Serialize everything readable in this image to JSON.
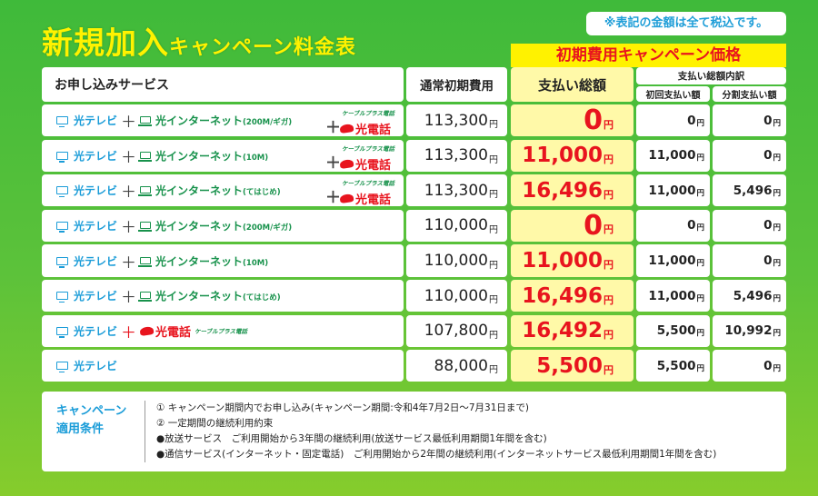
{
  "title": {
    "main": "新規加入",
    "sub": "キャンペーン料金表"
  },
  "tax_note": "※表記の金額は全て税込です。",
  "campaign_banner": "初期費用キャンペーン価格",
  "headers": {
    "service": "お申し込みサービス",
    "normal_fee": "通常初期費用",
    "total": "支払い総額",
    "breakdown": "支払い総額内訳",
    "initial": "初回支払い額",
    "split": "分割支払い額"
  },
  "labels": {
    "tv": "光テレビ",
    "internet": "光インターネット",
    "phone": "光電話",
    "cable_plus": "ケーブルプラス電話",
    "plus": "＋",
    "yen": "円"
  },
  "rows": [
    {
      "plan": "(200M/ギガ)",
      "has_internet": true,
      "has_phone": true,
      "normal": "113,300",
      "total": "0",
      "initial": "0",
      "split": "0"
    },
    {
      "plan": "(10M)",
      "has_internet": true,
      "has_phone": true,
      "normal": "113,300",
      "total": "11,000",
      "initial": "11,000",
      "split": "0"
    },
    {
      "plan": "(てはじめ)",
      "has_internet": true,
      "has_phone": true,
      "normal": "113,300",
      "total": "16,496",
      "initial": "11,000",
      "split": "5,496"
    },
    {
      "plan": "(200M/ギガ)",
      "has_internet": true,
      "has_phone": false,
      "normal": "110,000",
      "total": "0",
      "initial": "0",
      "split": "0"
    },
    {
      "plan": "(10M)",
      "has_internet": true,
      "has_phone": false,
      "normal": "110,000",
      "total": "11,000",
      "initial": "11,000",
      "split": "0"
    },
    {
      "plan": "(てはじめ)",
      "has_internet": true,
      "has_phone": false,
      "normal": "110,000",
      "total": "16,496",
      "initial": "11,000",
      "split": "5,496"
    },
    {
      "plan": "",
      "has_internet": false,
      "has_phone": true,
      "normal": "107,800",
      "total": "16,492",
      "initial": "5,500",
      "split": "10,992"
    },
    {
      "plan": "",
      "has_internet": false,
      "has_phone": false,
      "normal": "88,000",
      "total": "5,500",
      "initial": "5,500",
      "split": "0"
    }
  ],
  "conditions": {
    "label_line1": "キャンペーン",
    "label_line2": "適用条件",
    "lines": [
      "① キャンペーン期間内でお申し込み(キャンペーン期間:令和4年7月2日〜7月31日まで)",
      "② 一定期間の継続利用約束",
      "●放送サービス　ご利用開始から3年間の継続利用(放送サービス最低利用期間1年間を含む)",
      "●通信サービス(インターネット・固定電話)　ご利用開始から2年間の継続利用(インターネットサービス最低利用期間1年間を含む)"
    ]
  },
  "colors": {
    "background": "#3fba3a",
    "accent_yellow": "#fff200",
    "price_red": "#e8141e",
    "tv_blue": "#1a9cd8",
    "internet_green": "#18924c"
  }
}
